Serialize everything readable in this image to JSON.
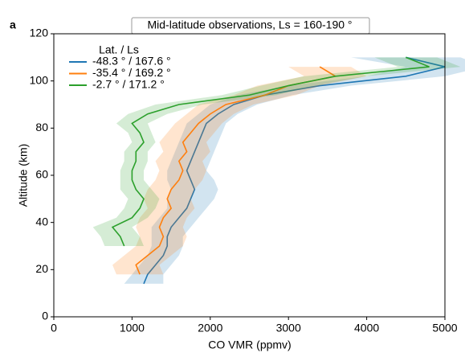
{
  "chart_data": {
    "type": "profile",
    "panel_label": "a",
    "title": "Mid-latitude observations, Ls = 160-190 °",
    "x_label": "CO VMR (ppmv)",
    "y_label": "Altitude (km)",
    "legend_title": "Lat. / Ls",
    "legend": "upper left",
    "xlim": [
      0,
      5000
    ],
    "xticks": [
      0,
      1000,
      2000,
      3000,
      4000,
      5000
    ],
    "ylim": [
      0,
      120
    ],
    "yticks": [
      0,
      20,
      40,
      60,
      80,
      100,
      120
    ],
    "y": [
      14,
      18,
      22,
      26,
      30,
      34,
      38,
      42,
      46,
      50,
      54,
      58,
      62,
      66,
      70,
      74,
      78,
      82,
      86,
      90,
      94,
      98,
      102,
      106,
      110
    ],
    "series": [
      {
        "name": "-48.3 °  / 167.6 °",
        "color": "#1f77b4",
        "values": [
          1150,
          1200,
          1300,
          1400,
          1450,
          1450,
          1500,
          1600,
          1700,
          1750,
          1800,
          1750,
          1700,
          1750,
          1800,
          1850,
          1900,
          1950,
          2100,
          2300,
          2700,
          3400,
          4500,
          5000,
          4500
        ],
        "errors": [
          250,
          200,
          200,
          200,
          200,
          200,
          250,
          250,
          250,
          300,
          300,
          300,
          250,
          250,
          250,
          250,
          250,
          250,
          250,
          300,
          350,
          400,
          500,
          500,
          700
        ]
      },
      {
        "name": "-35.4 °  / 169.2 °",
        "color": "#ff7f0e",
        "values": [
          null,
          1100,
          1050,
          1200,
          1350,
          1400,
          1350,
          1400,
          1500,
          1450,
          1500,
          1600,
          1650,
          1600,
          1700,
          1650,
          1750,
          1850,
          2000,
          2200,
          2700,
          3000,
          3600,
          3400,
          null
        ],
        "errors": [
          null,
          300,
          300,
          300,
          300,
          300,
          300,
          300,
          300,
          300,
          300,
          300,
          300,
          300,
          300,
          300,
          300,
          300,
          300,
          350,
          400,
          400,
          400,
          400,
          null
        ]
      },
      {
        "name": "-2.7 °  / 171.2 °",
        "color": "#2ca02c",
        "values": [
          null,
          null,
          null,
          null,
          900,
          850,
          750,
          1000,
          1100,
          1150,
          1050,
          1000,
          1000,
          1050,
          1050,
          1150,
          1100,
          1000,
          1200,
          1600,
          2500,
          3000,
          3600,
          4800,
          4500
        ],
        "errors": [
          null,
          null,
          null,
          null,
          250,
          250,
          250,
          200,
          200,
          200,
          200,
          150,
          150,
          150,
          150,
          150,
          150,
          200,
          250,
          300,
          350,
          350,
          400,
          400,
          400
        ]
      }
    ]
  }
}
